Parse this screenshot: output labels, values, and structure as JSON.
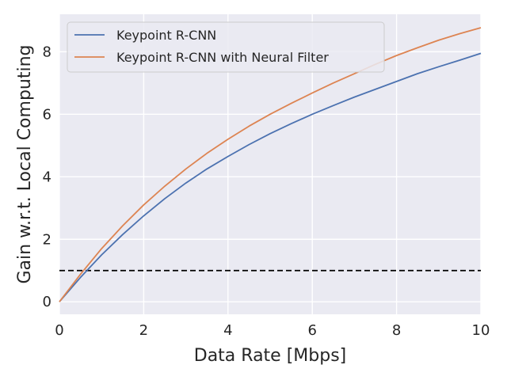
{
  "chart_data": {
    "type": "line",
    "title": "",
    "xlabel": "Data Rate [Mbps]",
    "ylabel": "Gain w.r.t. Local Computing",
    "xlim": [
      0,
      10
    ],
    "ylim": [
      -0.4,
      9.2
    ],
    "xticks": [
      0,
      2,
      4,
      6,
      8,
      10
    ],
    "yticks": [
      0,
      2,
      4,
      6,
      8
    ],
    "grid": true,
    "legend_position": "upper-left",
    "background_color": "#eaeaf2",
    "grid_color": "#ffffff",
    "x": [
      0,
      0.5,
      1,
      1.5,
      2,
      2.5,
      3,
      3.5,
      4,
      4.5,
      5,
      5.5,
      6,
      6.5,
      7,
      7.5,
      8,
      8.5,
      9,
      9.5,
      10
    ],
    "series": [
      {
        "name": "Keypoint R-CNN",
        "color": "#4c72b0",
        "values": [
          0,
          0.78,
          1.5,
          2.15,
          2.75,
          3.3,
          3.8,
          4.25,
          4.65,
          5.03,
          5.38,
          5.7,
          6.0,
          6.28,
          6.55,
          6.8,
          7.05,
          7.3,
          7.52,
          7.73,
          7.95
        ]
      },
      {
        "name": "Keypoint R-CNN with Neural Filter",
        "color": "#dd8452",
        "values": [
          0,
          0.88,
          1.7,
          2.43,
          3.1,
          3.7,
          4.25,
          4.75,
          5.2,
          5.62,
          6.0,
          6.35,
          6.68,
          7.0,
          7.3,
          7.6,
          7.88,
          8.13,
          8.37,
          8.58,
          8.77
        ]
      }
    ],
    "reference_line": {
      "y": 1,
      "color": "#000000",
      "style": "dashed"
    }
  }
}
